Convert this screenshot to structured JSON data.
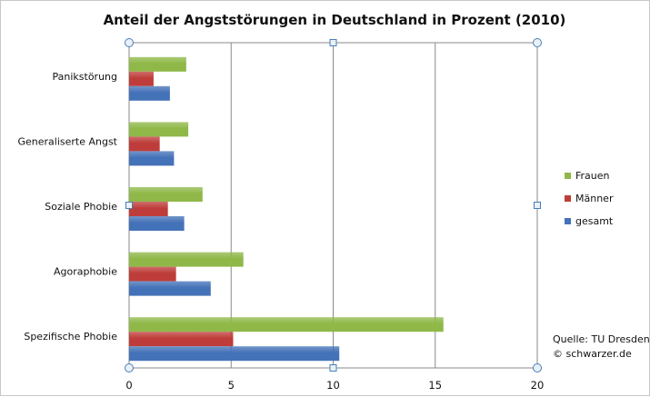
{
  "chart_data": {
    "type": "bar",
    "orientation": "horizontal",
    "title": "Anteil der Angststörungen in Deutschland in Prozent (2010)",
    "categories": [
      "Panikstörung",
      "Generaliserte Angst",
      "Soziale Phobie",
      "Agoraphobie",
      "Spezifische Phobie"
    ],
    "series": [
      {
        "name": "Frauen",
        "color": "#8fb848",
        "values": [
          2.8,
          2.9,
          3.6,
          5.6,
          15.4
        ]
      },
      {
        "name": "Männer",
        "color": "#be3d3a",
        "values": [
          1.2,
          1.5,
          1.9,
          2.3,
          5.1
        ]
      },
      {
        "name": "gesamt",
        "color": "#4472b8",
        "values": [
          2.0,
          2.2,
          2.7,
          4.0,
          10.3
        ]
      }
    ],
    "xlim": [
      0,
      20
    ],
    "xticks": [
      "0",
      "5",
      "10",
      "15",
      "20"
    ],
    "grid": "vertical",
    "legend_position": "right",
    "source_lines": [
      "Quelle: TU Dresden",
      "© schwarzer.de"
    ]
  }
}
